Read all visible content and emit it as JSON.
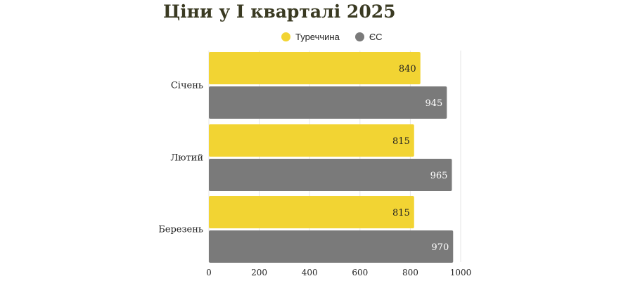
{
  "colors": {
    "turkey": "#f2d433",
    "eu": "#7a7a7a",
    "grid": "#e6e6e6"
  },
  "chart_data": {
    "type": "bar",
    "orientation": "horizontal",
    "title": "Ціни у І кварталі 2025",
    "categories": [
      "Січень",
      "Лютий",
      "Березень"
    ],
    "series": [
      {
        "name": "Туреччина",
        "values": [
          840,
          815,
          815
        ]
      },
      {
        "name": "ЄС",
        "values": [
          945,
          965,
          970
        ]
      }
    ],
    "xticks": [
      0,
      200,
      400,
      600,
      800,
      1000
    ],
    "xlim": [
      0,
      1000
    ],
    "grid": true,
    "legend": "top"
  }
}
